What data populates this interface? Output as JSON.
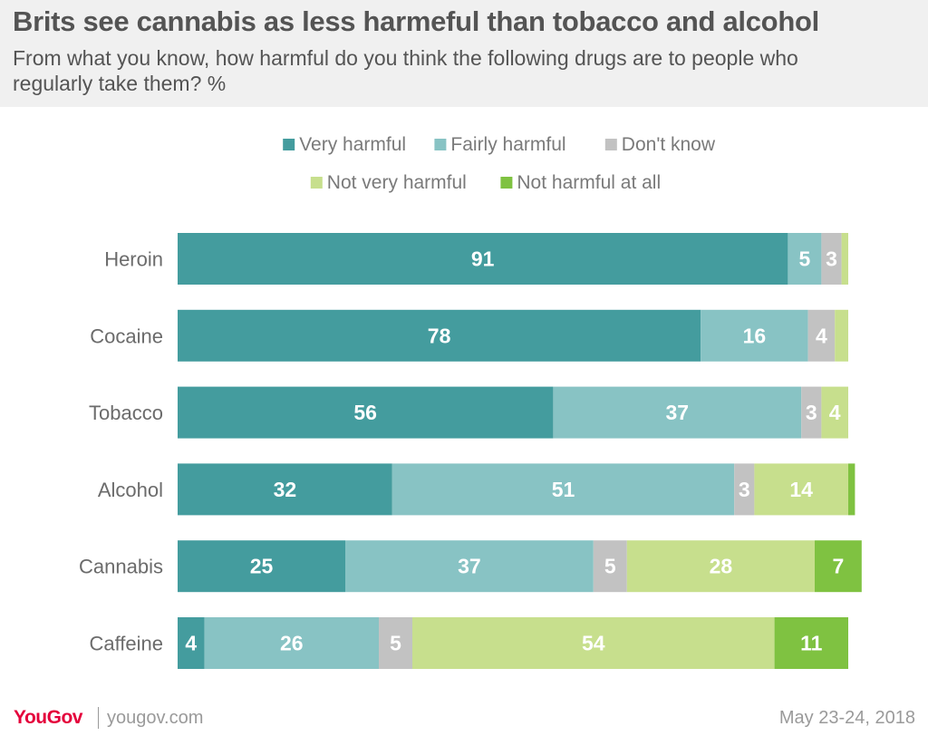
{
  "header": {
    "title": "Brits see cannabis as less harmeful than tobacco and alcohol",
    "subtitle": "From what you know, how harmful do you think the following drugs are to people who regularly take them? %"
  },
  "footer": {
    "logo": "YouGov",
    "site": "yougov.com",
    "date": "May 23-24, 2018"
  },
  "chart_data": {
    "type": "bar",
    "orientation": "horizontal",
    "stacked": true,
    "legend_position": "top",
    "grid": false,
    "xlim": [
      0,
      100
    ],
    "categories": [
      "Heroin",
      "Cocaine",
      "Tobacco",
      "Alcohol",
      "Cannabis",
      "Caffeine"
    ],
    "series": [
      {
        "name": "Very harmful",
        "color": "#449c9e",
        "values": [
          91,
          78,
          56,
          32,
          25,
          4
        ]
      },
      {
        "name": "Fairly harmful",
        "color": "#88c3c4",
        "values": [
          5,
          16,
          37,
          51,
          37,
          26
        ]
      },
      {
        "name": "Don't know",
        "color": "#c2c2c2",
        "values": [
          3,
          4,
          3,
          3,
          5,
          5
        ]
      },
      {
        "name": "Not very harmful",
        "color": "#c7df8d",
        "values": [
          1,
          2,
          4,
          14,
          28,
          54
        ]
      },
      {
        "name": "Not harmful at all",
        "color": "#7fc241",
        "values": [
          0,
          0,
          0,
          1,
          7,
          11
        ]
      }
    ]
  }
}
